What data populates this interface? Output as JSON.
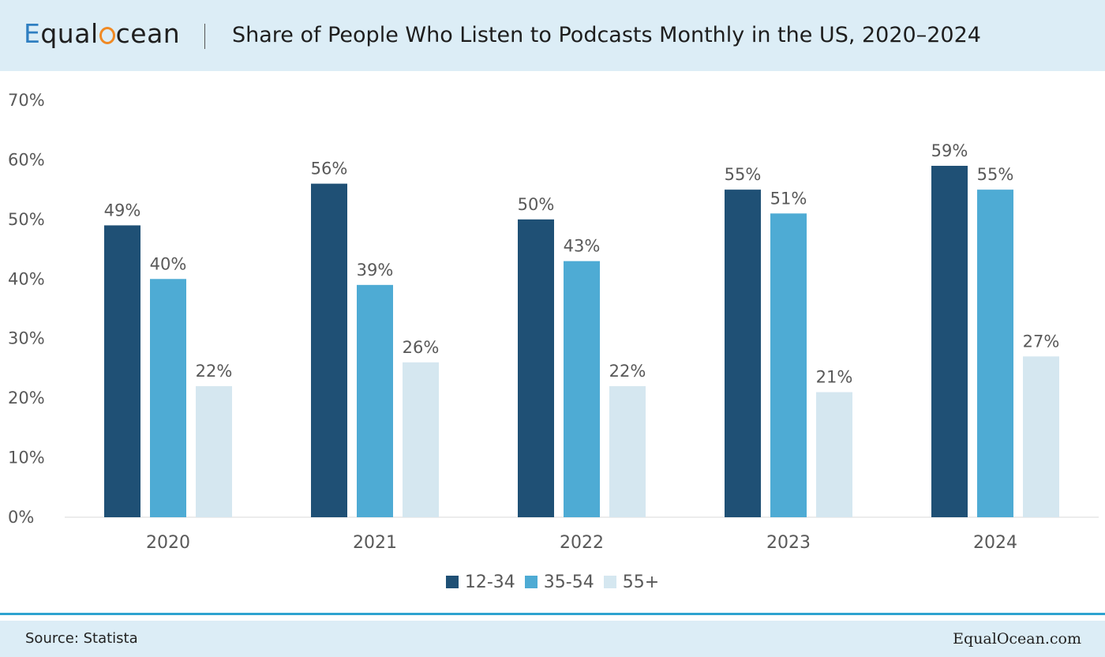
{
  "header": {
    "logo_e": "E",
    "logo_qual": "qual",
    "logo_cean": "cean",
    "title": "Share of People Who Listen to Podcasts Monthly in the US, 2020–2024"
  },
  "footer": {
    "source": "Source: Statista",
    "site": "EqualOcean.com"
  },
  "colors": {
    "series_12_34": "#1f5075",
    "series_35_54": "#4eabd4",
    "series_55_plus": "#d5e7f0",
    "header_bg": "#dcedf6",
    "accent_line": "#2ea3d0",
    "logo_blue": "#2f7fc1",
    "logo_orange": "#f08a24"
  },
  "chart_data": {
    "type": "bar",
    "title": "Share of People Who Listen to Podcasts Monthly in the US, 2020–2024",
    "xlabel": "",
    "ylabel": "",
    "categories": [
      "2020",
      "2021",
      "2022",
      "2023",
      "2024"
    ],
    "series": [
      {
        "name": "12-34",
        "values": [
          49,
          56,
          50,
          55,
          59
        ],
        "labels": [
          "49%",
          "56%",
          "50%",
          "55%",
          "59%"
        ],
        "color": "#1f5075"
      },
      {
        "name": "35-54",
        "values": [
          40,
          39,
          43,
          51,
          55
        ],
        "labels": [
          "40%",
          "39%",
          "43%",
          "51%",
          "55%"
        ],
        "color": "#4eabd4"
      },
      {
        "name": "55+",
        "values": [
          22,
          26,
          22,
          21,
          27
        ],
        "labels": [
          "22%",
          "26%",
          "22%",
          "21%",
          "27%"
        ],
        "color": "#d5e7f0"
      }
    ],
    "ylim": [
      0,
      70
    ],
    "yticks": [
      "0%",
      "10%",
      "20%",
      "30%",
      "40%",
      "50%",
      "60%",
      "70%"
    ],
    "grid": false,
    "legend_position": "bottom-center"
  }
}
